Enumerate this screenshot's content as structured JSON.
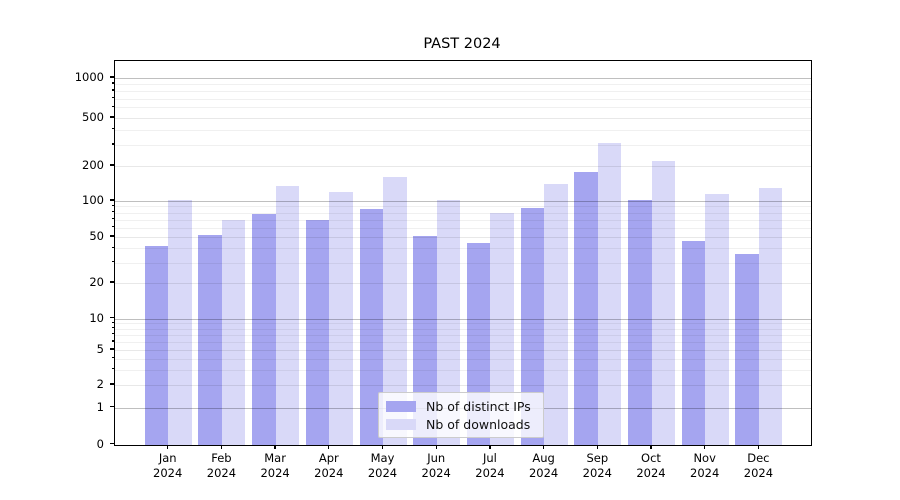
{
  "title": "PAST 2024",
  "chart_data": {
    "type": "bar",
    "title": "PAST 2024",
    "categories": [
      "Jan 2024",
      "Feb 2024",
      "Mar 2024",
      "Apr 2024",
      "May 2024",
      "Jun 2024",
      "Jul 2024",
      "Aug 2024",
      "Sep 2024",
      "Oct 2024",
      "Nov 2024",
      "Dec 2024"
    ],
    "months": [
      "Jan",
      "Feb",
      "Mar",
      "Apr",
      "May",
      "Jun",
      "Jul",
      "Aug",
      "Sep",
      "Oct",
      "Nov",
      "Dec"
    ],
    "year_label": "2024",
    "series": [
      {
        "name": "Nb of distinct IPs",
        "color": "#a5a5f0",
        "values": [
          42,
          52,
          78,
          70,
          85,
          51,
          44,
          87,
          178,
          103,
          46,
          36
        ]
      },
      {
        "name": "Nb of downloads",
        "color": "#d9d9f8",
        "values": [
          102,
          70,
          135,
          120,
          160,
          103,
          80,
          140,
          310,
          220,
          115,
          130
        ]
      }
    ],
    "y_axis": {
      "scale": "symlog",
      "ticks": [
        0,
        1,
        2,
        5,
        10,
        20,
        50,
        100,
        200,
        500,
        1000
      ],
      "minor_ticks": [
        3,
        4,
        6,
        7,
        8,
        9,
        30,
        40,
        60,
        70,
        80,
        90,
        300,
        400,
        600,
        700,
        800,
        900
      ]
    },
    "grid": true,
    "legend": {
      "position": "lower-center",
      "entries": [
        "Nb of distinct IPs",
        "Nb of downloads"
      ]
    },
    "colors": {
      "bar_dark": "#a5a5f0",
      "bar_light": "#d9d9f8",
      "spine": "#000000",
      "grid_major": "rgba(0,0,0,0.25)",
      "grid_labeled": "rgba(0,0,0,0.09)",
      "grid_minor": "rgba(0,0,0,0.06)"
    }
  }
}
